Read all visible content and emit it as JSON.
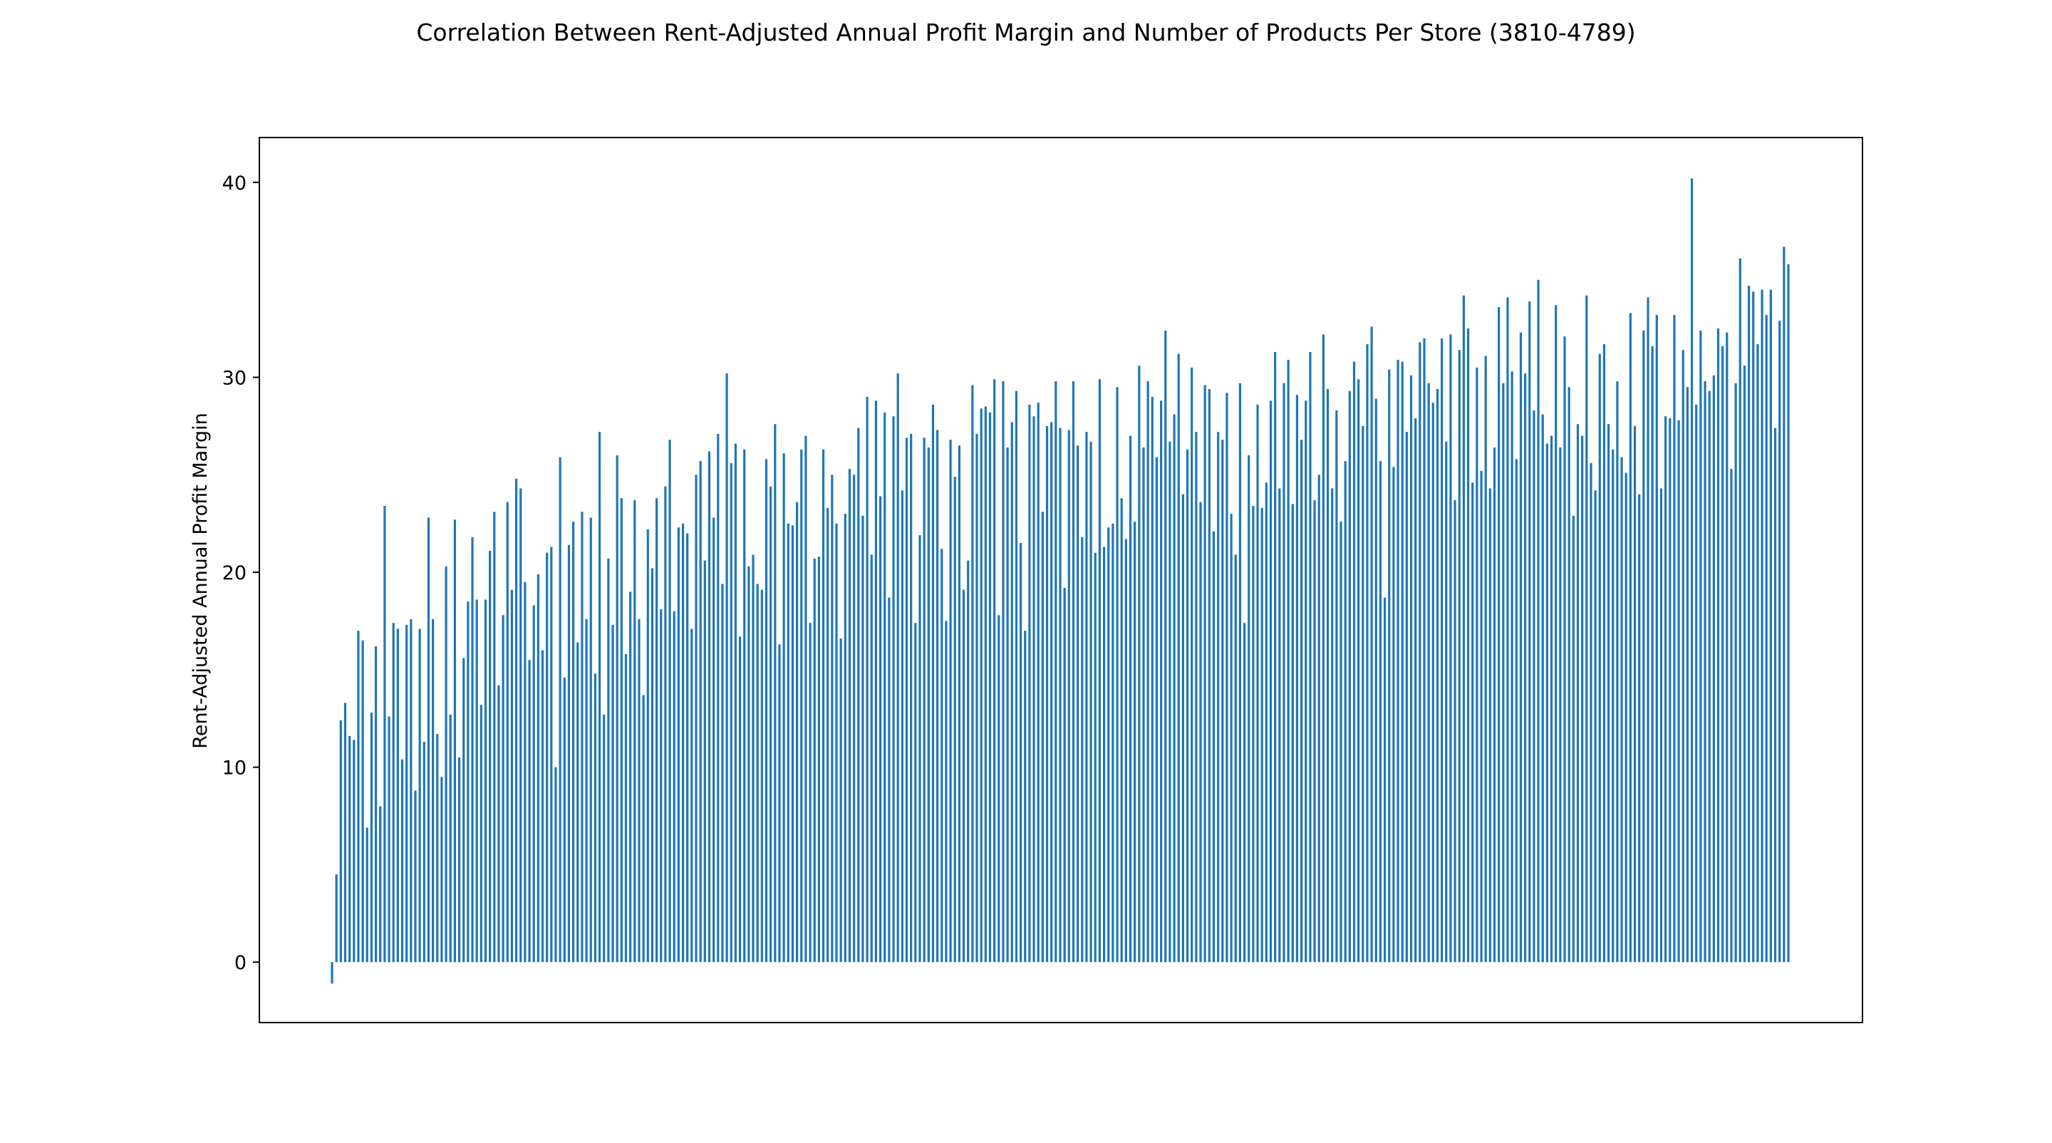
{
  "chart_data": {
    "type": "bar",
    "title": "Correlation Between Rent-Adjusted Annual Profit Margin and Number of Products Per Store (3810-4789)",
    "xlabel": "",
    "ylabel": "Rent-Adjusted Annual Profit Margin",
    "ylim": [
      -3.1,
      42.3
    ],
    "yticks": [
      0,
      10,
      20,
      30,
      40
    ],
    "x_tick_labels_visible": false,
    "grid": false,
    "bar_color": "#1f77b4",
    "values": [
      -1.1,
      4.5,
      12.4,
      13.3,
      11.6,
      11.4,
      17.0,
      16.5,
      6.9,
      12.8,
      16.2,
      8.0,
      23.4,
      12.6,
      17.4,
      17.1,
      10.4,
      17.3,
      17.6,
      8.8,
      17.1,
      11.3,
      22.8,
      17.6,
      11.7,
      9.5,
      20.3,
      12.7,
      22.7,
      10.5,
      15.6,
      18.5,
      21.8,
      18.6,
      13.2,
      18.6,
      21.1,
      23.1,
      14.2,
      17.8,
      23.6,
      19.1,
      24.8,
      24.3,
      19.5,
      15.5,
      18.3,
      19.9,
      16.0,
      21.0,
      21.3,
      10.0,
      25.9,
      14.6,
      21.4,
      22.6,
      16.4,
      23.1,
      17.6,
      22.8,
      14.8,
      27.2,
      12.7,
      20.7,
      17.3,
      26.0,
      23.8,
      15.8,
      19.0,
      23.7,
      17.6,
      13.7,
      22.2,
      20.2,
      23.8,
      18.1,
      24.4,
      26.8,
      18.0,
      22.3,
      22.5,
      22.0,
      17.1,
      25.0,
      25.7,
      20.6,
      26.2,
      22.8,
      27.1,
      19.4,
      30.2,
      25.6,
      26.6,
      16.7,
      26.3,
      20.3,
      20.9,
      19.4,
      19.1,
      25.8,
      24.4,
      27.6,
      16.3,
      26.1,
      22.5,
      22.4,
      23.6,
      26.3,
      27.0,
      17.4,
      20.7,
      20.8,
      26.3,
      23.3,
      25.0,
      22.5,
      16.6,
      23.0,
      25.3,
      25.0,
      27.4,
      22.9,
      29.0,
      20.9,
      28.8,
      23.9,
      28.2,
      18.7,
      28.0,
      30.2,
      24.2,
      26.9,
      27.1,
      17.4,
      21.9,
      26.9,
      26.4,
      28.6,
      27.3,
      21.2,
      17.5,
      26.8,
      24.9,
      26.5,
      19.1,
      20.6,
      29.6,
      27.1,
      28.4,
      28.5,
      28.2,
      29.9,
      17.8,
      29.8,
      26.4,
      27.7,
      29.3,
      21.5,
      17.0,
      28.6,
      28.0,
      28.7,
      23.1,
      27.5,
      27.7,
      29.8,
      27.4,
      19.2,
      27.3,
      29.8,
      26.5,
      21.8,
      27.2,
      26.7,
      21.0,
      29.9,
      21.3,
      22.3,
      22.5,
      29.5,
      23.8,
      21.7,
      27.0,
      22.6,
      30.6,
      26.4,
      29.8,
      29.0,
      25.9,
      28.8,
      32.4,
      26.7,
      28.1,
      31.2,
      24.0,
      26.3,
      30.5,
      27.2,
      23.6,
      29.6,
      29.4,
      22.1,
      27.2,
      26.8,
      29.2,
      23.0,
      20.9,
      29.7,
      17.4,
      26.0,
      23.4,
      28.6,
      23.3,
      24.6,
      28.8,
      31.3,
      24.3,
      29.7,
      30.9,
      23.5,
      29.1,
      26.8,
      28.8,
      31.3,
      23.7,
      25.0,
      32.2,
      29.4,
      24.3,
      28.3,
      22.6,
      25.7,
      29.3,
      30.8,
      29.9,
      27.5,
      31.7,
      32.6,
      28.9,
      25.7,
      18.7,
      30.4,
      25.4,
      30.9,
      30.8,
      27.2,
      30.1,
      27.9,
      31.8,
      32.0,
      29.7,
      28.7,
      29.4,
      32.0,
      26.7,
      32.2,
      23.7,
      31.4,
      34.2,
      32.5,
      24.6,
      30.5,
      25.2,
      31.1,
      24.3,
      26.4,
      33.6,
      29.7,
      34.1,
      30.3,
      25.8,
      32.3,
      30.2,
      33.9,
      28.3,
      35.0,
      28.1,
      26.6,
      27.0,
      33.7,
      26.4,
      32.1,
      29.5,
      22.9,
      27.6,
      27.0,
      34.2,
      25.6,
      24.2,
      31.2,
      31.7,
      27.6,
      26.3,
      29.8,
      25.9,
      25.1,
      33.3,
      27.5,
      24.0,
      32.4,
      34.1,
      31.6,
      33.2,
      24.3,
      28.0,
      27.9,
      33.2,
      27.8,
      31.4,
      29.5,
      40.2,
      28.6,
      32.4,
      29.8,
      29.3,
      30.1,
      32.5,
      31.6,
      32.3,
      25.3,
      29.7,
      36.1,
      30.6,
      34.7,
      34.4,
      31.7,
      34.5,
      33.2,
      34.5,
      27.4,
      32.9,
      36.7,
      35.8
    ]
  }
}
